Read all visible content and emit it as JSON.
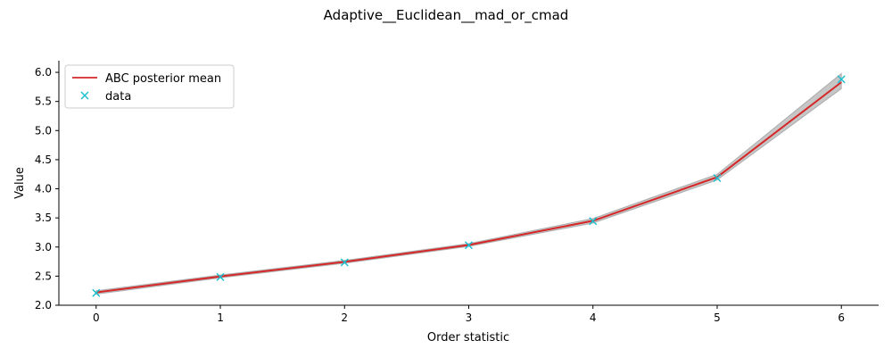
{
  "chart_data": {
    "type": "line",
    "title": "Adaptive__Euclidean__mad_or_cmad",
    "xlabel": "Order statistic",
    "ylabel": "Value",
    "xlim": [
      -0.3,
      6.3
    ],
    "ylim": [
      2.0,
      6.2
    ],
    "x_ticks": [
      0,
      1,
      2,
      3,
      4,
      5,
      6
    ],
    "x_tick_labels": [
      "0",
      "1",
      "2",
      "3",
      "4",
      "5",
      "6"
    ],
    "y_ticks": [
      2.0,
      2.5,
      3.0,
      3.5,
      4.0,
      4.5,
      5.0,
      5.5,
      6.0
    ],
    "y_tick_labels": [
      "2.0",
      "2.5",
      "3.0",
      "3.5",
      "4.0",
      "4.5",
      "5.0",
      "5.5",
      "6.0"
    ],
    "grid": false,
    "legend": "upper-left",
    "x": [
      0,
      1,
      2,
      3,
      4,
      5,
      6
    ],
    "band": {
      "lower": [
        2.19,
        2.47,
        2.72,
        3.01,
        3.41,
        4.15,
        5.72
      ],
      "upper": [
        2.25,
        2.52,
        2.77,
        3.06,
        3.49,
        4.25,
        5.98
      ],
      "color": "#808080"
    },
    "series": [
      {
        "name": "ABC posterior mean",
        "kind": "line",
        "color": "#d62728",
        "values": [
          2.22,
          2.495,
          2.745,
          3.035,
          3.45,
          4.2,
          5.83
        ]
      },
      {
        "name": "data",
        "kind": "marker",
        "marker": "x",
        "color": "#17becf",
        "values": [
          2.21,
          2.485,
          2.735,
          3.03,
          3.445,
          4.185,
          5.88
        ]
      }
    ]
  }
}
